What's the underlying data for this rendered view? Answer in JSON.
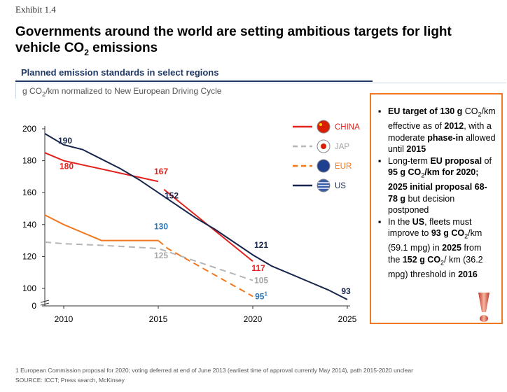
{
  "header": {
    "exhibit": "Exhibit 1.4",
    "title": "Governments around the world are setting ambitious targets for light vehicle CO",
    "title_sub": "2",
    "title_end": " emissions"
  },
  "subtitle": "Planned emission standards in select regions",
  "unit": {
    "pre": "g CO",
    "sub": "2",
    "post": "/km normalized to New European Driving Cycle"
  },
  "chart_data": {
    "type": "line",
    "x_ticks": [
      2010,
      2015,
      2020,
      2025
    ],
    "y_ticks": [
      0,
      100,
      120,
      140,
      160,
      180,
      200
    ],
    "ylim": [
      90,
      200
    ],
    "axis_break": true,
    "legend_position": "top-right",
    "series": [
      {
        "name": "CHINA",
        "color": "#e3211c",
        "dash": false,
        "x": [
          2009,
          2010,
          2015,
          2015.3,
          2020
        ],
        "y": [
          185,
          180,
          167,
          162,
          117
        ],
        "segments": [
          [
            0,
            2
          ],
          [
            3,
            4
          ]
        ]
      },
      {
        "name": "JAP",
        "color": "#b5b5b5",
        "dash": true,
        "x": [
          2009,
          2010,
          2012,
          2015,
          2020
        ],
        "y": [
          129,
          128,
          127,
          125,
          105
        ],
        "segments": [
          [
            0,
            4
          ]
        ]
      },
      {
        "name": "EUR",
        "color": "#f07820",
        "dash": false,
        "x": [
          2009,
          2010,
          2012,
          2015,
          2015.5,
          2020
        ],
        "y": [
          146,
          140,
          130,
          130,
          125,
          95
        ],
        "segments": [
          [
            0,
            3
          ]
        ],
        "dash_segments": [
          [
            3,
            5
          ]
        ]
      },
      {
        "name": "US",
        "color": "#17254c",
        "dash": false,
        "x": [
          2009,
          2010,
          2011,
          2012,
          2013,
          2014,
          2015,
          2016,
          2017,
          2018,
          2019,
          2020,
          2021,
          2022,
          2023,
          2024,
          2025
        ],
        "y": [
          197,
          190,
          187,
          181,
          175,
          168,
          160,
          152,
          144,
          137,
          129,
          121,
          114,
          109,
          104,
          99,
          93
        ],
        "segments": [
          [
            0,
            16
          ]
        ]
      }
    ],
    "labels": [
      {
        "text": "190",
        "x": 2010,
        "y": 190,
        "color": "#17254c"
      },
      {
        "text": "180",
        "x": 2010,
        "y": 180,
        "color": "#e3211c"
      },
      {
        "text": "167",
        "x": 2015,
        "y": 167,
        "color": "#e3211c"
      },
      {
        "text": "152",
        "x": 2016,
        "y": 152,
        "color": "#17254c"
      },
      {
        "text": "130",
        "x": 2015,
        "y": 130,
        "color": "#2e75b6"
      },
      {
        "text": "125",
        "x": 2015,
        "y": 125,
        "color": "#a6a6a6"
      },
      {
        "text": "121",
        "x": 2020,
        "y": 121,
        "color": "#17254c"
      },
      {
        "text": "117",
        "x": 2020,
        "y": 117,
        "color": "#e3211c"
      },
      {
        "text": "105",
        "x": 2020,
        "y": 105,
        "color": "#a6a6a6"
      },
      {
        "text": "95",
        "sup": "1",
        "x": 2020,
        "y": 95,
        "color": "#2e75b6"
      },
      {
        "text": "93",
        "x": 2025,
        "y": 93,
        "color": "#17254c"
      }
    ]
  },
  "callout": {
    "b1": [
      "EU target of ",
      "130 g",
      " CO",
      "2",
      "/km effective as of ",
      "2012",
      ", with a moderate ",
      "phase-in",
      " allowed until ",
      "2015"
    ],
    "b2": [
      "Long-term ",
      "EU proposal",
      " of ",
      "95 g CO",
      "2",
      "/km ",
      "for 2020;  2025 initial proposal 68-78 g",
      " but decision postponed"
    ],
    "b3": [
      "In the ",
      "US",
      ", fleets must improve to ",
      "93 g CO",
      "2",
      "/km (59.1 mpg) in ",
      "2025",
      " from the ",
      "152 g CO",
      "2",
      "/ km (36.2 mpg) threshold in ",
      "2016"
    ]
  },
  "footnotes": {
    "note": "1 European Commission proposal for 2020; voting deferred at end of June 2013 (earliest time of approval currently May 2014), path 2015-2020 unclear",
    "source": "SOURCE: ICCT; Press search, McKinsey"
  }
}
